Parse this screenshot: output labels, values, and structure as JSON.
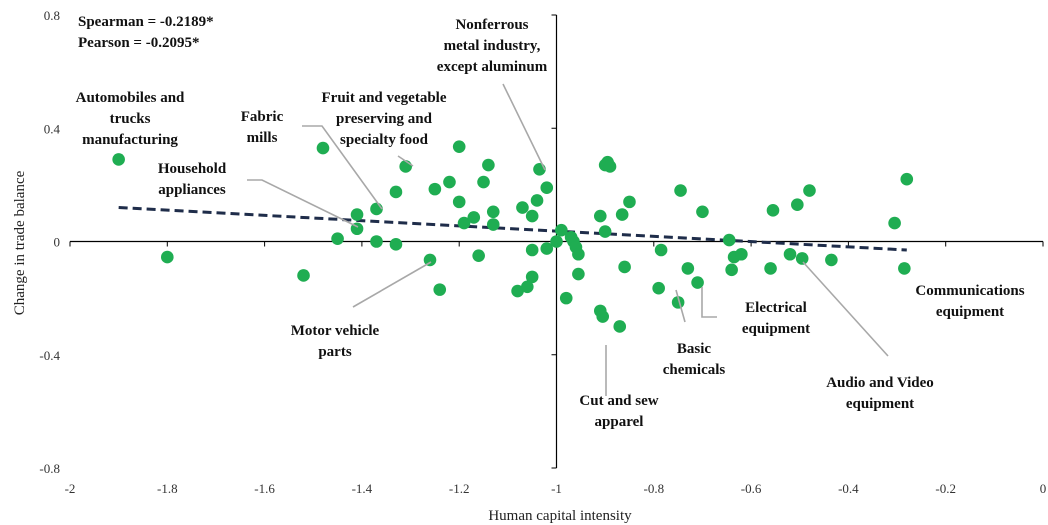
{
  "chart_data": {
    "type": "scatter",
    "xlabel": "Human capital intensity",
    "ylabel": "Change in trade balance",
    "xlim": [
      -2,
      0
    ],
    "ylim": [
      -0.8,
      0.8
    ],
    "x_ticks": [
      -2,
      -1.8,
      -1.6,
      -1.4,
      -1.2,
      -1,
      -0.8,
      -0.6,
      -0.4,
      -0.2,
      0
    ],
    "x_tick_labels": [
      "-2",
      "-1.8",
      "-1.6",
      "-1.4",
      "-1.2",
      "-1",
      "-0.8",
      "-0.6",
      "-0.4",
      "-0.2",
      "0"
    ],
    "y_ticks": [
      -0.8,
      -0.4,
      0,
      0.4,
      0.8
    ],
    "y_tick_labels": [
      "-0.8",
      "-0.4",
      "0",
      "0.4",
      "0.8"
    ],
    "grid": false,
    "stats": [
      "Spearman = -0.2189*",
      "Pearson = -0.2095*"
    ],
    "marker_color": "#1fad52",
    "trend_color": "#1f2d4a",
    "trend_line": {
      "x": [
        -1.9,
        -0.28
      ],
      "y": [
        0.12,
        -0.03
      ]
    },
    "points": [
      {
        "x": -1.9,
        "y": 0.29
      },
      {
        "x": -1.8,
        "y": -0.055
      },
      {
        "x": -1.52,
        "y": -0.12
      },
      {
        "x": -1.48,
        "y": 0.33
      },
      {
        "x": -1.45,
        "y": 0.01
      },
      {
        "x": -1.41,
        "y": 0.095
      },
      {
        "x": -1.41,
        "y": 0.045
      },
      {
        "x": -1.37,
        "y": 0.115
      },
      {
        "x": -1.37,
        "y": 0.0
      },
      {
        "x": -1.33,
        "y": -0.01
      },
      {
        "x": -1.33,
        "y": 0.175
      },
      {
        "x": -1.31,
        "y": 0.265
      },
      {
        "x": -1.26,
        "y": -0.065
      },
      {
        "x": -1.25,
        "y": 0.185
      },
      {
        "x": -1.24,
        "y": -0.17
      },
      {
        "x": -1.22,
        "y": 0.21
      },
      {
        "x": -1.2,
        "y": 0.335
      },
      {
        "x": -1.2,
        "y": 0.14
      },
      {
        "x": -1.19,
        "y": 0.065
      },
      {
        "x": -1.17,
        "y": 0.085
      },
      {
        "x": -1.16,
        "y": -0.05
      },
      {
        "x": -1.15,
        "y": 0.21
      },
      {
        "x": -1.14,
        "y": 0.27
      },
      {
        "x": -1.13,
        "y": 0.105
      },
      {
        "x": -1.13,
        "y": 0.06
      },
      {
        "x": -1.08,
        "y": -0.175
      },
      {
        "x": -1.07,
        "y": 0.12
      },
      {
        "x": -1.06,
        "y": -0.16
      },
      {
        "x": -1.05,
        "y": 0.09
      },
      {
        "x": -1.05,
        "y": -0.03
      },
      {
        "x": -1.05,
        "y": -0.125
      },
      {
        "x": -1.04,
        "y": 0.145
      },
      {
        "x": -1.035,
        "y": 0.255
      },
      {
        "x": -1.02,
        "y": 0.19
      },
      {
        "x": -1.02,
        "y": -0.025
      },
      {
        "x": -1.0,
        "y": 0.0
      },
      {
        "x": -0.99,
        "y": 0.04
      },
      {
        "x": -0.98,
        "y": -0.2
      },
      {
        "x": -0.97,
        "y": 0.015
      },
      {
        "x": -0.965,
        "y": 0.0
      },
      {
        "x": -0.96,
        "y": -0.02
      },
      {
        "x": -0.955,
        "y": -0.045
      },
      {
        "x": -0.955,
        "y": -0.115
      },
      {
        "x": -0.91,
        "y": 0.09
      },
      {
        "x": -0.91,
        "y": -0.245
      },
      {
        "x": -0.905,
        "y": -0.265
      },
      {
        "x": -0.9,
        "y": 0.035
      },
      {
        "x": -0.9,
        "y": 0.27
      },
      {
        "x": -0.895,
        "y": 0.28
      },
      {
        "x": -0.89,
        "y": 0.265
      },
      {
        "x": -0.87,
        "y": -0.3
      },
      {
        "x": -0.865,
        "y": 0.095
      },
      {
        "x": -0.86,
        "y": -0.09
      },
      {
        "x": -0.85,
        "y": 0.14
      },
      {
        "x": -0.79,
        "y": -0.165
      },
      {
        "x": -0.785,
        "y": -0.03
      },
      {
        "x": -0.75,
        "y": -0.215
      },
      {
        "x": -0.745,
        "y": 0.18
      },
      {
        "x": -0.73,
        "y": -0.095
      },
      {
        "x": -0.71,
        "y": -0.145
      },
      {
        "x": -0.7,
        "y": 0.105
      },
      {
        "x": -0.645,
        "y": 0.005
      },
      {
        "x": -0.64,
        "y": -0.1
      },
      {
        "x": -0.635,
        "y": -0.055
      },
      {
        "x": -0.62,
        "y": -0.045
      },
      {
        "x": -0.56,
        "y": -0.095
      },
      {
        "x": -0.555,
        "y": 0.11
      },
      {
        "x": -0.52,
        "y": -0.045
      },
      {
        "x": -0.505,
        "y": 0.13
      },
      {
        "x": -0.495,
        "y": -0.06
      },
      {
        "x": -0.48,
        "y": 0.18
      },
      {
        "x": -0.435,
        "y": -0.065
      },
      {
        "x": -0.305,
        "y": 0.065
      },
      {
        "x": -0.285,
        "y": -0.095
      },
      {
        "x": -0.28,
        "y": 0.22
      }
    ],
    "annotations": [
      {
        "lines": [
          "Automobiles and",
          "trucks",
          "manufacturing"
        ]
      },
      {
        "lines": [
          "Fabric",
          "mills"
        ]
      },
      {
        "lines": [
          "Fruit and vegetable",
          "preserving and",
          "specialty food"
        ]
      },
      {
        "lines": [
          "Nonferrous",
          "metal industry,",
          "except aluminum"
        ]
      },
      {
        "lines": [
          "Household",
          "appliances"
        ]
      },
      {
        "lines": [
          "Motor vehicle",
          "parts"
        ]
      },
      {
        "lines": [
          "Cut and sew",
          "apparel"
        ]
      },
      {
        "lines": [
          "Basic",
          "chemicals"
        ]
      },
      {
        "lines": [
          "Electrical",
          "equipment"
        ]
      },
      {
        "lines": [
          "Audio and Video",
          "equipment"
        ]
      },
      {
        "lines": [
          "Communications",
          "equipment"
        ]
      }
    ]
  }
}
